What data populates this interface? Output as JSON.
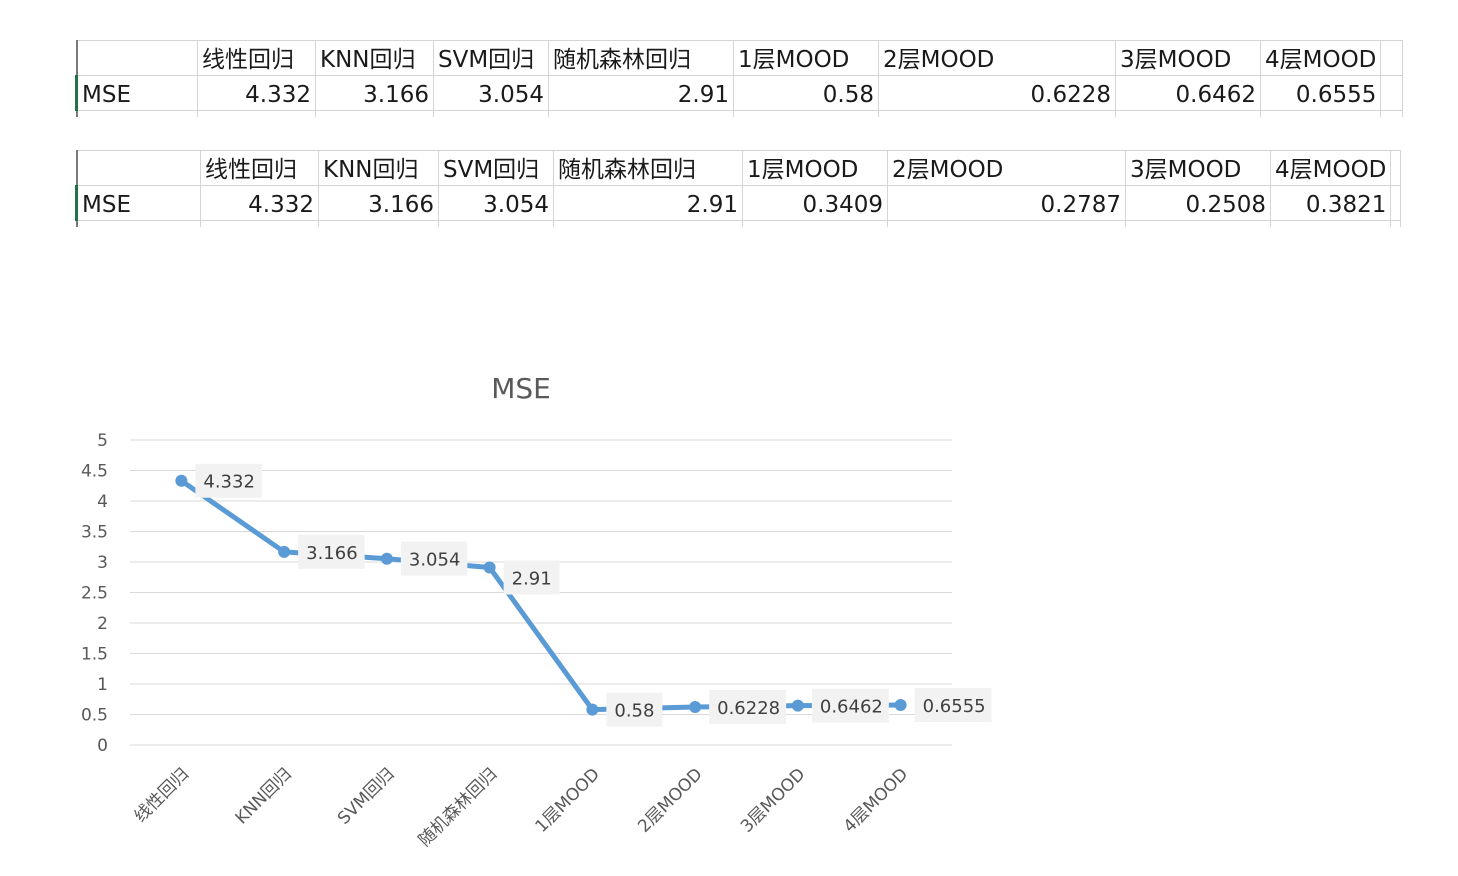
{
  "tables": [
    {
      "headers": [
        "",
        "线性回归",
        "KNN回归",
        "SVM回归",
        "随机森林回归",
        "1层MOOD",
        "2层MOOD",
        "3层MOOD",
        "4层MOOD"
      ],
      "row_label": "MSE",
      "values": [
        "4.332",
        "3.166",
        "3.054",
        "2.91",
        "0.58",
        "0.6228",
        "0.6462",
        "0.6555"
      ]
    },
    {
      "headers": [
        "",
        "线性回归",
        "KNN回归",
        "SVM回归",
        "随机森林回归",
        "1层MOOD",
        "2层MOOD",
        "3层MOOD",
        "4层MOOD"
      ],
      "row_label": "MSE",
      "values": [
        "4.332",
        "3.166",
        "3.054",
        "2.91",
        "0.3409",
        "0.2787",
        "0.2508",
        "0.3821"
      ]
    }
  ],
  "chart_data": {
    "type": "line",
    "title": "MSE",
    "categories": [
      "线性回归",
      "KNN回归",
      "SVM回归",
      "随机森林回归",
      "1层MOOD",
      "2层MOOD",
      "3层MOOD",
      "4层MOOD"
    ],
    "series": [
      {
        "values": [
          4.332,
          3.166,
          3.054,
          2.91,
          0.58,
          0.6228,
          0.6462,
          0.6555
        ],
        "labels": [
          "4.332",
          "3.166",
          "3.054",
          "2.91",
          "0.58",
          "0.6228",
          "0.6462",
          "0.6555"
        ]
      }
    ],
    "yticks": [
      "0",
      "0.5",
      "1",
      "1.5",
      "2",
      "2.5",
      "3",
      "3.5",
      "4",
      "4.5",
      "5"
    ],
    "ylim": [
      0,
      5
    ],
    "grid": true,
    "legend": "none",
    "colors": {
      "line": "#5b9bd5",
      "grid": "#d9d9d9",
      "label_bg": "#f2f2f2",
      "axis_text": "#595959"
    }
  }
}
